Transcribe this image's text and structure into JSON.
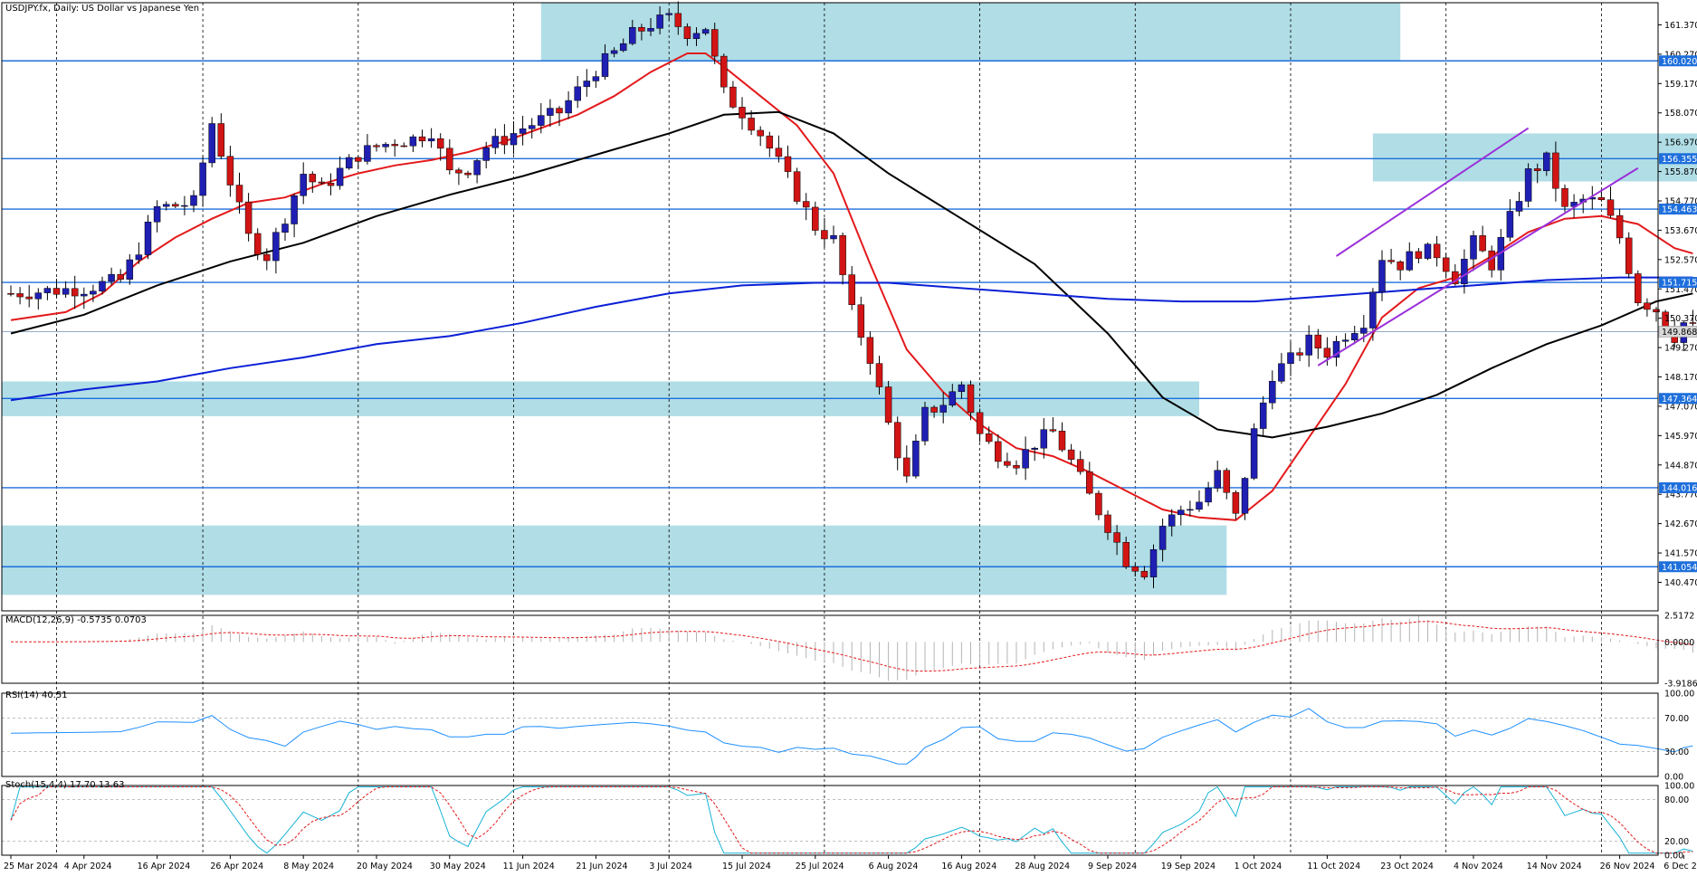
{
  "chart_data": {
    "type": "candlestick",
    "title": "USDJPY.fx, Daily:  US Dollar vs Japanese Yen",
    "price_axis": {
      "ylim": [
        139.4,
        162.2
      ],
      "ticks": [
        "161.370",
        "160.270",
        "159.170",
        "158.070",
        "156.970",
        "155.870",
        "154.770",
        "153.670",
        "152.570",
        "151.470",
        "150.370",
        "149.270",
        "148.170",
        "147.070",
        "145.970",
        "144.870",
        "143.770",
        "142.670",
        "141.570",
        "140.470"
      ]
    },
    "dates": [
      {
        "label": "25 Mar 2024",
        "index": 0
      },
      {
        "label": "4 Apr 2024",
        "index": 8
      },
      {
        "label": "16 Apr 2024",
        "index": 16
      },
      {
        "label": "26 Apr 2024",
        "index": 24
      },
      {
        "label": "8 May 2024",
        "index": 32
      },
      {
        "label": "20 May 2024",
        "index": 40
      },
      {
        "label": "30 May 2024",
        "index": 48
      },
      {
        "label": "11 Jun 2024",
        "index": 56
      },
      {
        "label": "21 Jun 2024",
        "index": 64
      },
      {
        "label": "3 Jul 2024",
        "index": 72
      },
      {
        "label": "15 Jul 2024",
        "index": 80
      },
      {
        "label": "25 Jul 2024",
        "index": 88
      },
      {
        "label": "6 Aug 2024",
        "index": 96
      },
      {
        "label": "16 Aug 2024",
        "index": 104
      },
      {
        "label": "28 Aug 2024",
        "index": 112
      },
      {
        "label": "9 Sep 2024",
        "index": 120
      },
      {
        "label": "19 Sep 2024",
        "index": 128
      },
      {
        "label": "1 Oct 2024",
        "index": 136
      },
      {
        "label": "11 Oct 2024",
        "index": 144
      },
      {
        "label": "23 Oct 2024",
        "index": 152
      },
      {
        "label": "4 Nov 2024",
        "index": 160
      },
      {
        "label": "14 Nov 2024",
        "index": 168
      },
      {
        "label": "26 Nov 2024",
        "index": 176
      },
      {
        "label": "6 Dec 2024",
        "index": 183
      }
    ],
    "close_path": [
      [
        0,
        151.3
      ],
      [
        8,
        151.5
      ],
      [
        12,
        151.8
      ],
      [
        14,
        153.0
      ],
      [
        16,
        154.5
      ],
      [
        20,
        154.7
      ],
      [
        22,
        157.7
      ],
      [
        24,
        155.5
      ],
      [
        26,
        153.4
      ],
      [
        28,
        152.7
      ],
      [
        30,
        154.2
      ],
      [
        32,
        155.8
      ],
      [
        34,
        155.2
      ],
      [
        36,
        155.9
      ],
      [
        38,
        156.5
      ],
      [
        40,
        156.8
      ],
      [
        42,
        157.0
      ],
      [
        44,
        157.1
      ],
      [
        46,
        157.4
      ],
      [
        48,
        155.8
      ],
      [
        50,
        156.0
      ],
      [
        52,
        156.8
      ],
      [
        54,
        157.1
      ],
      [
        56,
        157.5
      ],
      [
        58,
        157.8
      ],
      [
        60,
        158.1
      ],
      [
        62,
        158.9
      ],
      [
        64,
        159.7
      ],
      [
        66,
        160.3
      ],
      [
        68,
        161.0
      ],
      [
        70,
        161.4
      ],
      [
        72,
        161.6
      ],
      [
        74,
        161.1
      ],
      [
        76,
        161.3
      ],
      [
        78,
        158.8
      ],
      [
        80,
        158.1
      ],
      [
        82,
        157.3
      ],
      [
        84,
        156.2
      ],
      [
        86,
        155.0
      ],
      [
        88,
        153.8
      ],
      [
        90,
        153.3
      ],
      [
        92,
        150.6
      ],
      [
        94,
        148.9
      ],
      [
        96,
        146.4
      ],
      [
        98,
        144.3
      ],
      [
        100,
        146.8
      ],
      [
        102,
        147.2
      ],
      [
        104,
        147.9
      ],
      [
        106,
        146.0
      ],
      [
        108,
        145.3
      ],
      [
        110,
        145.0
      ],
      [
        112,
        145.7
      ],
      [
        114,
        146.1
      ],
      [
        116,
        145.0
      ],
      [
        118,
        143.7
      ],
      [
        120,
        142.6
      ],
      [
        122,
        141.3
      ],
      [
        124,
        140.9
      ],
      [
        126,
        142.6
      ],
      [
        128,
        143.2
      ],
      [
        130,
        143.5
      ],
      [
        132,
        144.5
      ],
      [
        134,
        142.9
      ],
      [
        136,
        146.1
      ],
      [
        138,
        148.3
      ],
      [
        140,
        148.8
      ],
      [
        142,
        149.5
      ],
      [
        144,
        149.1
      ],
      [
        146,
        149.8
      ],
      [
        148,
        150.3
      ],
      [
        150,
        152.7
      ],
      [
        152,
        152.4
      ],
      [
        154,
        152.9
      ],
      [
        156,
        152.8
      ],
      [
        158,
        151.9
      ],
      [
        160,
        153.2
      ],
      [
        162,
        152.4
      ],
      [
        164,
        154.1
      ],
      [
        166,
        155.8
      ],
      [
        168,
        156.3
      ],
      [
        170,
        154.4
      ],
      [
        172,
        154.8
      ],
      [
        174,
        154.7
      ],
      [
        176,
        153.4
      ],
      [
        178,
        151.1
      ],
      [
        180,
        150.7
      ],
      [
        182,
        149.7
      ],
      [
        183,
        150.2
      ],
      [
        184,
        150.0
      ]
    ],
    "candle_count": 185,
    "moving_averages": [
      {
        "color": "#e31a1c",
        "points": [
          [
            0,
            150.3
          ],
          [
            6,
            150.6
          ],
          [
            10,
            151.3
          ],
          [
            14,
            152.5
          ],
          [
            18,
            153.4
          ],
          [
            22,
            154.1
          ],
          [
            26,
            154.7
          ],
          [
            30,
            154.9
          ],
          [
            34,
            155.4
          ],
          [
            38,
            155.8
          ],
          [
            42,
            156.1
          ],
          [
            46,
            156.3
          ],
          [
            50,
            156.6
          ],
          [
            54,
            157.0
          ],
          [
            58,
            157.5
          ],
          [
            62,
            158.0
          ],
          [
            66,
            158.7
          ],
          [
            70,
            159.6
          ],
          [
            74,
            160.3
          ],
          [
            76,
            160.3
          ],
          [
            78,
            159.8
          ],
          [
            82,
            158.7
          ],
          [
            86,
            157.6
          ],
          [
            90,
            155.8
          ],
          [
            94,
            152.4
          ],
          [
            98,
            149.2
          ],
          [
            102,
            147.6
          ],
          [
            106,
            146.4
          ],
          [
            110,
            145.5
          ],
          [
            114,
            145.2
          ],
          [
            118,
            144.6
          ],
          [
            122,
            143.9
          ],
          [
            126,
            143.2
          ],
          [
            130,
            142.9
          ],
          [
            134,
            142.8
          ],
          [
            138,
            143.9
          ],
          [
            142,
            145.9
          ],
          [
            146,
            147.9
          ],
          [
            150,
            150.4
          ],
          [
            154,
            151.5
          ],
          [
            158,
            151.9
          ],
          [
            162,
            152.7
          ],
          [
            166,
            153.6
          ],
          [
            170,
            154.1
          ],
          [
            174,
            154.2
          ],
          [
            178,
            153.9
          ],
          [
            182,
            153.0
          ],
          [
            184,
            152.8
          ]
        ]
      },
      {
        "color": "#000000",
        "points": [
          [
            0,
            149.8
          ],
          [
            8,
            150.5
          ],
          [
            16,
            151.6
          ],
          [
            24,
            152.5
          ],
          [
            32,
            153.2
          ],
          [
            40,
            154.2
          ],
          [
            48,
            155.0
          ],
          [
            56,
            155.7
          ],
          [
            64,
            156.5
          ],
          [
            72,
            157.3
          ],
          [
            78,
            158.0
          ],
          [
            84,
            158.1
          ],
          [
            90,
            157.3
          ],
          [
            96,
            155.8
          ],
          [
            104,
            154.1
          ],
          [
            112,
            152.4
          ],
          [
            120,
            149.8
          ],
          [
            126,
            147.4
          ],
          [
            132,
            146.2
          ],
          [
            138,
            145.9
          ],
          [
            144,
            146.3
          ],
          [
            150,
            146.8
          ],
          [
            156,
            147.5
          ],
          [
            162,
            148.5
          ],
          [
            168,
            149.4
          ],
          [
            174,
            150.1
          ],
          [
            180,
            151.0
          ],
          [
            184,
            151.3
          ]
        ]
      },
      {
        "color": "#0a1fd6",
        "points": [
          [
            0,
            147.3
          ],
          [
            8,
            147.7
          ],
          [
            16,
            148.0
          ],
          [
            24,
            148.5
          ],
          [
            32,
            148.9
          ],
          [
            40,
            149.4
          ],
          [
            48,
            149.7
          ],
          [
            56,
            150.2
          ],
          [
            64,
            150.8
          ],
          [
            72,
            151.3
          ],
          [
            80,
            151.6
          ],
          [
            88,
            151.7
          ],
          [
            96,
            151.7
          ],
          [
            104,
            151.5
          ],
          [
            112,
            151.3
          ],
          [
            120,
            151.1
          ],
          [
            128,
            151.0
          ],
          [
            136,
            151.0
          ],
          [
            144,
            151.2
          ],
          [
            152,
            151.4
          ],
          [
            160,
            151.6
          ],
          [
            168,
            151.8
          ],
          [
            176,
            151.9
          ],
          [
            184,
            151.9
          ]
        ]
      }
    ],
    "h_lines": [
      {
        "value": 160.02,
        "label": "160.020"
      },
      {
        "value": 156.355,
        "label": "156.355"
      },
      {
        "value": 154.463,
        "label": "154.463"
      },
      {
        "value": 151.715,
        "label": "151.715"
      },
      {
        "value": 147.364,
        "label": "147.364"
      },
      {
        "value": 144.016,
        "label": "144.016"
      },
      {
        "value": 141.054,
        "label": "141.054"
      }
    ],
    "current_price": {
      "value": 149.868,
      "label": "149.868"
    },
    "zones": [
      {
        "x1": 58,
        "x2": 152,
        "y1": 160.0,
        "y2": 162.2
      },
      {
        "x1": -1,
        "x2": 130,
        "y1": 146.7,
        "y2": 148.0
      },
      {
        "x1": -1,
        "x2": 133,
        "y1": 140.0,
        "y2": 142.6
      },
      {
        "x1": 149,
        "x2": 198,
        "y1": 155.5,
        "y2": 157.3
      }
    ],
    "channel_lines": [
      {
        "color": "#9b30d9",
        "from": [
          143,
          148.6
        ],
        "to": [
          178,
          156.0
        ]
      },
      {
        "color": "#9b30d9",
        "from": [
          145,
          152.7
        ],
        "to": [
          166,
          157.5
        ]
      }
    ],
    "vertical_grid_indices": [
      5,
      21,
      38,
      55,
      72,
      89,
      106,
      123,
      140,
      157,
      174,
      191
    ],
    "macd": {
      "label": "MACD(12,26,9) -0.5735 0.0703",
      "ticks": [
        "2.5172",
        "0.0000",
        "-3.9186"
      ],
      "range": [
        -3.9186,
        2.5172
      ]
    },
    "rsi": {
      "label": "RSI(14) 40.51",
      "ticks": [
        "100.00",
        "70.00",
        "30.00",
        "0.00"
      ]
    },
    "stoch": {
      "label": "Stoch(15,4,4) 17.70 13.63",
      "ticks": [
        "100.00",
        "80.00",
        "20.00",
        "0.00"
      ]
    }
  }
}
